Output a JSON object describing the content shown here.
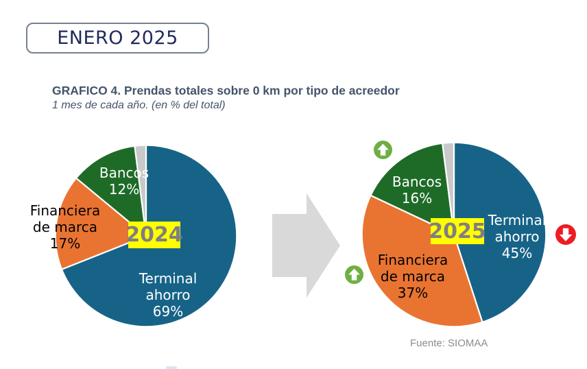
{
  "header": {
    "badge_label": "ENERO 2025"
  },
  "title": {
    "heading": "GRAFICO 4. Prendas totales sobre 0 km por tipo de acreedor",
    "subheading": "1 mes de cada año. (en % del total)"
  },
  "source_note": "Fuente: SIOMAA",
  "colors": {
    "blue": "#176388",
    "orange": "#E97432",
    "green": "#1E6B28",
    "gray": "#C9C9C9",
    "highlight": "#FFFF00",
    "year_text": "#7F7F7F",
    "trend_up": "#6FAE44",
    "trend_down": "#EC1C24",
    "transition_arrow": "#D9D9D9",
    "title_text": "#44546A",
    "badge_text": "#1F2A5C",
    "badge_border": "#75808F",
    "source_text": "#8C8C8C"
  },
  "icons": {
    "trend_up": "circle-up-arrow",
    "trend_down": "circle-down-arrow",
    "transition": "block-arrow-right"
  },
  "chart_data": [
    {
      "type": "pie",
      "year_label": "2024",
      "start_angle_deg": -90,
      "direction": "clockwise",
      "slices": [
        {
          "label": "Terminal ahorro",
          "pct": "69%",
          "value": 69,
          "color_key": "blue",
          "label_color": "white"
        },
        {
          "label": "Financiera de marca",
          "pct": "17%",
          "value": 17,
          "color_key": "orange",
          "label_color": "black"
        },
        {
          "label": "Bancos",
          "pct": "12%",
          "value": 12,
          "color_key": "green",
          "label_color": "white"
        },
        {
          "label": "",
          "pct": "",
          "value": 2,
          "color_key": "gray"
        }
      ]
    },
    {
      "type": "pie",
      "year_label": "2025",
      "start_angle_deg": -90,
      "direction": "clockwise",
      "slices": [
        {
          "label": "Terminal ahorro",
          "pct": "45%",
          "value": 45,
          "color_key": "blue",
          "label_color": "white",
          "trend": "down"
        },
        {
          "label": "Financiera de marca",
          "pct": "37%",
          "value": 37,
          "color_key": "orange",
          "label_color": "black",
          "trend": "up"
        },
        {
          "label": "Bancos",
          "pct": "16%",
          "value": 16,
          "color_key": "green",
          "label_color": "white",
          "trend": "up"
        },
        {
          "label": "",
          "pct": "",
          "value": 2,
          "color_key": "gray"
        }
      ]
    }
  ]
}
